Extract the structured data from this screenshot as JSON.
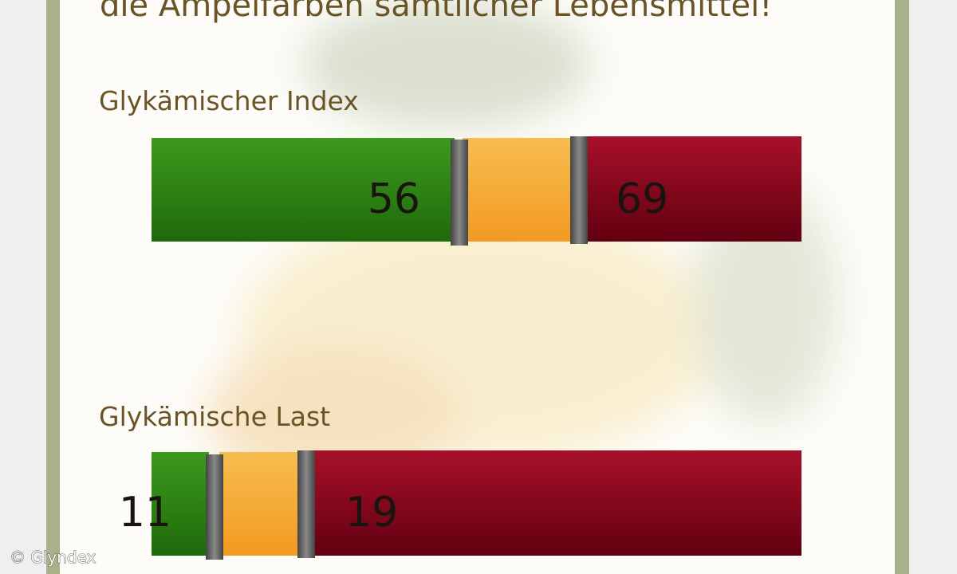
{
  "header": {
    "text": "die Ampelfarben sämtlicher Lebensmittel!"
  },
  "sections": [
    {
      "title": "Glykämischer Index",
      "thresholds": [
        56,
        69
      ]
    },
    {
      "title": "Glykämische Last",
      "thresholds": [
        11,
        19
      ]
    }
  ],
  "watermark": "© Glyndex"
}
